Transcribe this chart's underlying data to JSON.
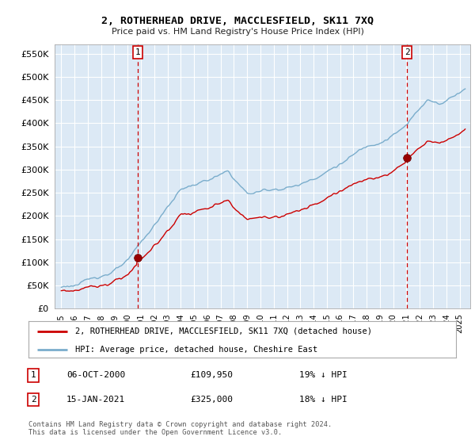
{
  "title": "2, ROTHERHEAD DRIVE, MACCLESFIELD, SK11 7XQ",
  "subtitle": "Price paid vs. HM Land Registry's House Price Index (HPI)",
  "legend_house": "2, ROTHERHEAD DRIVE, MACCLESFIELD, SK11 7XQ (detached house)",
  "legend_hpi": "HPI: Average price, detached house, Cheshire East",
  "sale1_date": "06-OCT-2000",
  "sale1_price": "£109,950",
  "sale1_pct": "19% ↓ HPI",
  "sale2_date": "15-JAN-2021",
  "sale2_price": "£325,000",
  "sale2_pct": "18% ↓ HPI",
  "footnote": "Contains HM Land Registry data © Crown copyright and database right 2024.\nThis data is licensed under the Open Government Licence v3.0.",
  "house_color": "#cc0000",
  "hpi_color": "#7aadcc",
  "sale_marker_color": "#990000",
  "vline_color": "#cc0000",
  "bg_chart": "#dce9f5",
  "background_color": "#ffffff",
  "grid_color": "#ffffff",
  "ylim": [
    0,
    570000
  ],
  "yticks": [
    0,
    50000,
    100000,
    150000,
    200000,
    250000,
    300000,
    350000,
    400000,
    450000,
    500000,
    550000
  ],
  "sale1_x": 2000.75,
  "sale1_y": 109950,
  "sale2_x": 2021.04,
  "sale2_y": 325000,
  "xmin": 1994.5,
  "xmax": 2025.8
}
